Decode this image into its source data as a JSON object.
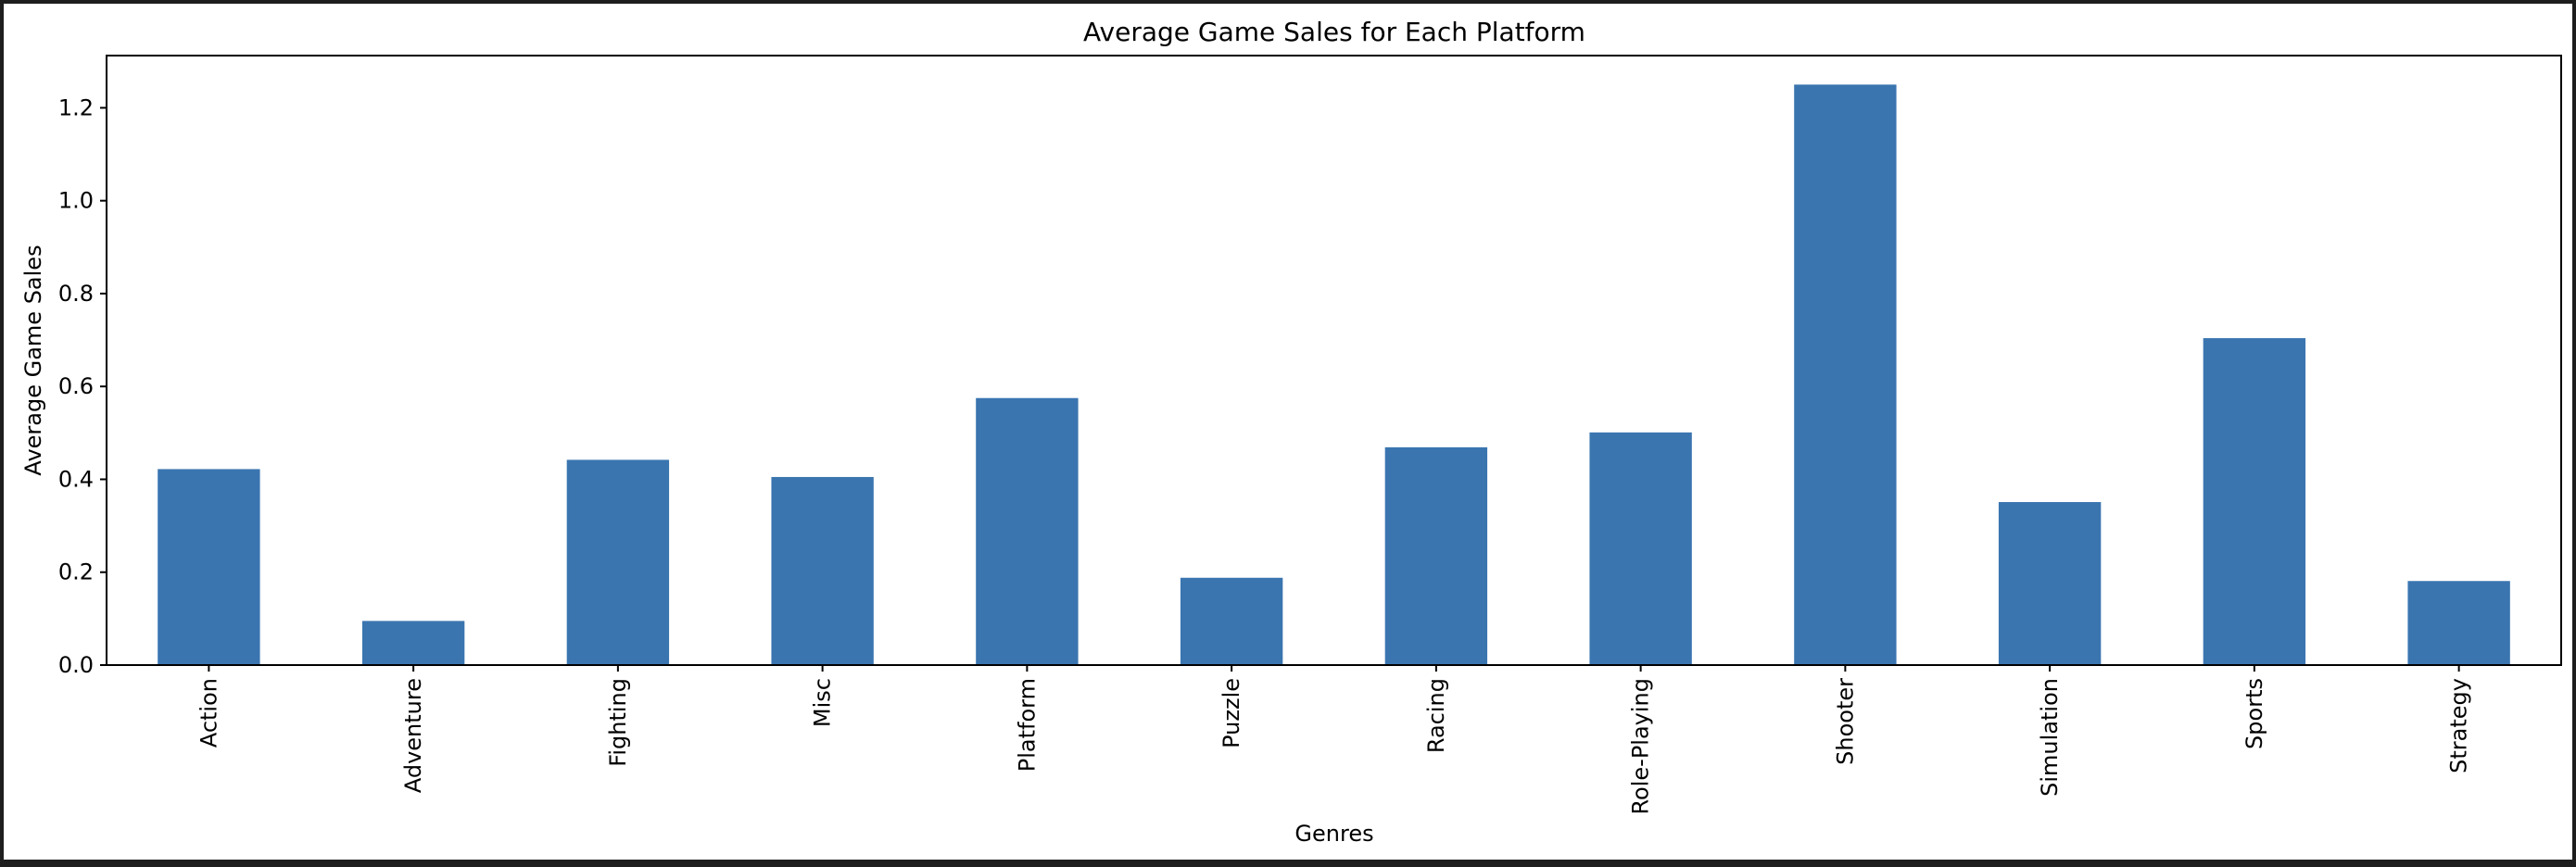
{
  "chart_data": {
    "type": "bar",
    "title": "Average Game Sales for Each Platform",
    "xlabel": "Genres",
    "ylabel": "Average Game Sales",
    "categories": [
      "Action",
      "Adventure",
      "Fighting",
      "Misc",
      "Platform",
      "Puzzle",
      "Racing",
      "Role-Playing",
      "Shooter",
      "Simulation",
      "Sports",
      "Strategy"
    ],
    "values": [
      0.422,
      0.095,
      0.442,
      0.405,
      0.575,
      0.188,
      0.469,
      0.501,
      1.25,
      0.351,
      0.704,
      0.181
    ],
    "yticks": [
      "0.0",
      "0.2",
      "0.4",
      "0.6",
      "0.8",
      "1.0",
      "1.2"
    ],
    "ylim": [
      0,
      1.3125
    ],
    "grid": false,
    "legend": "none",
    "bar_color": "#3a75b0"
  }
}
